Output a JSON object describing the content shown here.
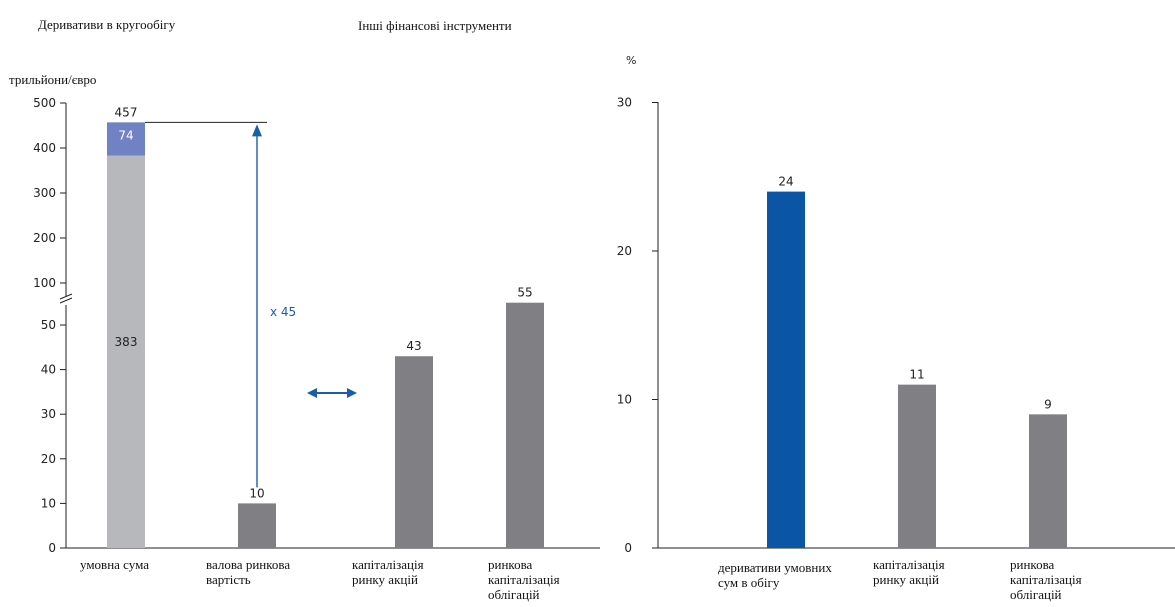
{
  "headings": {
    "derivatives": "Деривативи в кругообігу",
    "other": "Інші фінансові інструменти"
  },
  "colors": {
    "bar_gray": "#7f7f84",
    "bar_light_gray": "#b7b8bc",
    "bar_lavender": "#7081c4",
    "bar_blue": "#0a56a5",
    "arrow_blue": "#1b5ea8"
  },
  "chart_data": [
    {
      "type": "bar",
      "ylabel": "трильйони/євро",
      "axis_break": true,
      "ticks_lower": [
        "0",
        "10",
        "20",
        "30",
        "40",
        "50"
      ],
      "ticks_upper": [
        "100",
        "200",
        "300",
        "400",
        "500"
      ],
      "categories": [
        "умовна сума",
        "валова ринкова вартість",
        "капіталізація ринку акцій",
        "ринкова капіталізація облігацій"
      ],
      "category_lines": [
        [
          "умовна сума"
        ],
        [
          "валова ринкова",
          "вартість"
        ],
        [
          "капіталізація",
          "ринку акцій"
        ],
        [
          "ринкова",
          "капіталізація",
          "облігацій"
        ]
      ],
      "bars": [
        {
          "category": "умовна сума",
          "total": 457,
          "segments": [
            {
              "value": 383,
              "label": "383",
              "color": "#b7b8bc"
            },
            {
              "value": 74,
              "label": "74",
              "color": "#7081c4"
            }
          ]
        },
        {
          "category": "валова ринкова вартість",
          "value": 10,
          "label": "10"
        },
        {
          "category": "капіталізація ринку акцій",
          "value": 43,
          "label": "43"
        },
        {
          "category": "ринкова капіталізація облігацій",
          "value": 55,
          "label": "55"
        }
      ],
      "annotations": {
        "multiplier": "x 45"
      }
    },
    {
      "type": "bar",
      "ylabel": "%",
      "ylim": [
        0,
        30
      ],
      "ticks": [
        "0",
        "10",
        "20",
        "30"
      ],
      "categories": [
        "деривативи умовних сум в обігу",
        "капіталізація ринку акцій",
        "ринкова капіталізація облігацій"
      ],
      "category_lines": [
        [
          "деривативи умовних",
          "сум в обігу"
        ],
        [
          "капіталізація",
          "ринку акцій"
        ],
        [
          "ринкова",
          "капіталізація",
          "облігацій"
        ]
      ],
      "values": [
        24,
        11,
        9
      ],
      "labels": [
        "24",
        "11",
        "9"
      ],
      "highlight_index": 0
    }
  ]
}
